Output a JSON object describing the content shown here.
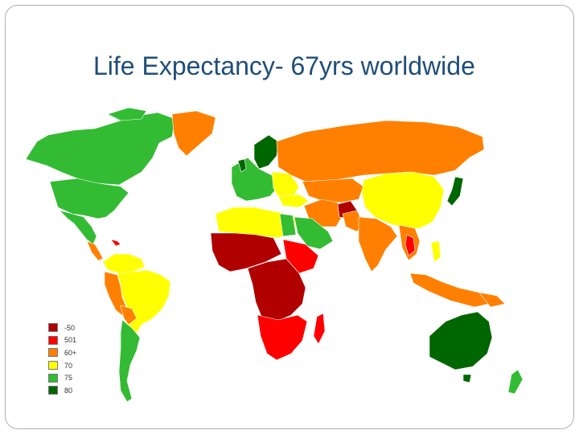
{
  "slide": {
    "title": "Life Expectancy- 67yrs worldwide"
  },
  "legend": [
    {
      "label": "-50",
      "color": "#b00000",
      "category": "le50"
    },
    {
      "label": "501",
      "color": "#ff0000",
      "category": "le55"
    },
    {
      "label": "60+",
      "color": "#ff8000",
      "category": "le60"
    },
    {
      "label": "70",
      "color": "#ffff00",
      "category": "le70"
    },
    {
      "label": "75",
      "color": "#33bb33",
      "category": "le75"
    },
    {
      "label": "80",
      "color": "#006600",
      "category": "le80"
    }
  ],
  "map": {
    "ocean_color": "#ffffff",
    "border_color": "#ffffff",
    "icons": [
      "world-map"
    ]
  }
}
